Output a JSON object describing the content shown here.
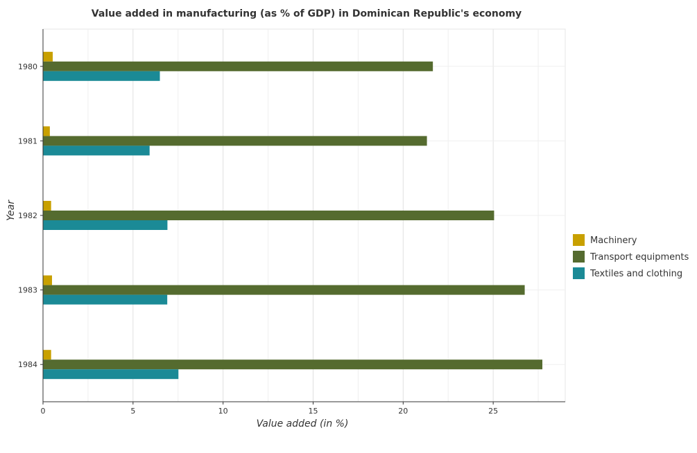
{
  "chart_data": {
    "type": "bar",
    "orientation": "horizontal",
    "title": "Value added in manufacturing (as % of GDP) in Dominican Republic's economy",
    "xlabel": "Value added (in %)",
    "ylabel": "Year",
    "categories": [
      "1980",
      "1981",
      "1982",
      "1983",
      "1984"
    ],
    "series": [
      {
        "name": "Machinery",
        "color": "#c8a000",
        "values": [
          0.54,
          0.38,
          0.45,
          0.5,
          0.45
        ]
      },
      {
        "name": "Transport equipments",
        "color": "#556b2f",
        "values": [
          21.65,
          21.32,
          25.05,
          26.75,
          27.73
        ]
      },
      {
        "name": "Textiles and clothing",
        "color": "#1b8a96",
        "values": [
          6.49,
          5.92,
          6.91,
          6.9,
          7.52
        ]
      }
    ],
    "xlim": [
      0,
      29.0
    ],
    "xticks": [
      0,
      5,
      10,
      15,
      20,
      25
    ],
    "grid": true,
    "legend_position": "right"
  }
}
